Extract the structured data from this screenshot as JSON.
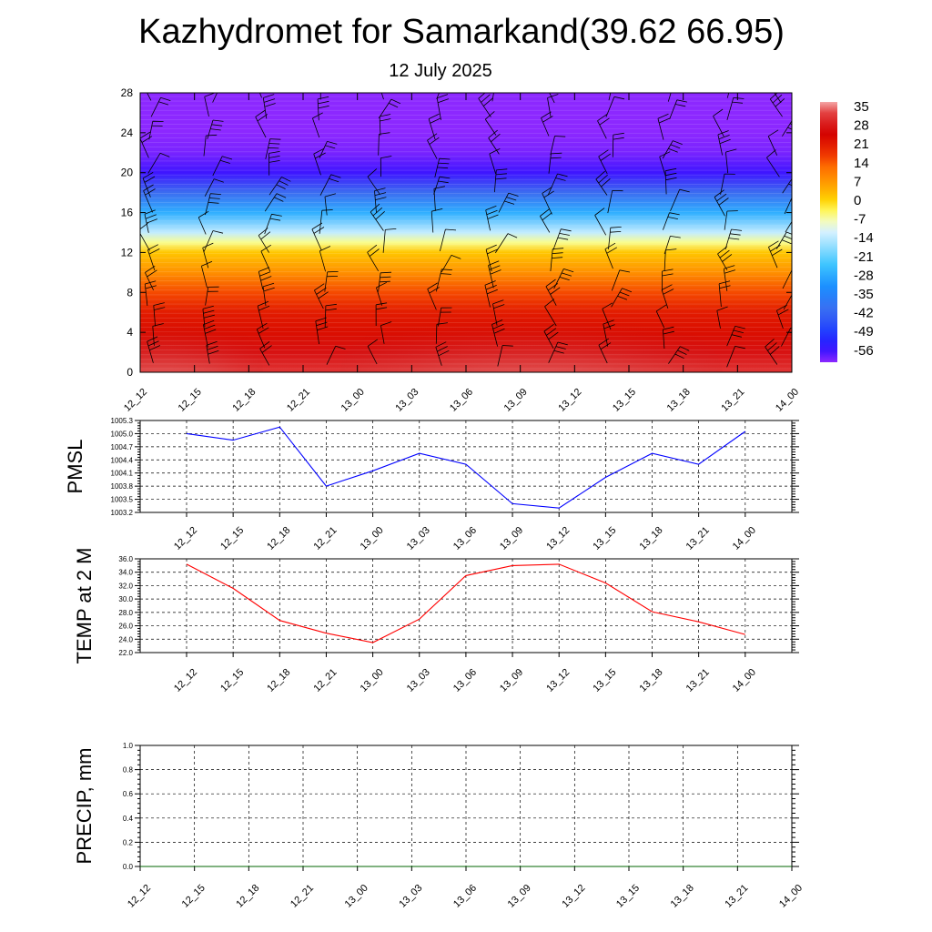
{
  "title": "Kazhydromet for Samarkand(39.62 66.95)",
  "subtitle": "12 July 2025",
  "colors": {
    "pmsl_line": "#0000ff",
    "temp_line": "#ff0000",
    "precip_line": "#006400"
  },
  "chart_data": [
    {
      "id": "temperature-profile",
      "type": "heatmap",
      "x_categories": [
        "12_12",
        "12_15",
        "12_18",
        "12_21",
        "13_00",
        "13_03",
        "13_06",
        "13_09",
        "13_12",
        "13_15",
        "13_18",
        "13_21",
        "14_00"
      ],
      "y_ticks": [
        0,
        4,
        8,
        12,
        16,
        20,
        24,
        28
      ],
      "ylim": [
        0,
        28
      ],
      "colorbar": {
        "labels": [
          "35",
          "28",
          "21",
          "14",
          "7",
          "0",
          "-7",
          "-14",
          "-21",
          "-28",
          "-35",
          "-42",
          "-49",
          "-56"
        ],
        "min": -56,
        "max": 35
      },
      "profile_y": [
        0,
        2,
        4,
        6,
        8,
        10,
        12,
        13,
        14,
        16,
        18,
        20,
        22,
        24,
        26,
        28
      ],
      "profile_t": [
        30,
        26,
        22,
        20,
        15,
        8,
        2,
        -5,
        -12,
        -25,
        -38,
        -52,
        -55,
        -57,
        -58,
        -58
      ],
      "wind_barbs": true
    },
    {
      "id": "pmsl",
      "type": "line",
      "ylabel": "PMSL",
      "categories": [
        "12_12",
        "12_15",
        "12_18",
        "12_21",
        "13_00",
        "13_03",
        "13_06",
        "13_09",
        "13_12",
        "13_15",
        "13_18",
        "13_21",
        "14_00"
      ],
      "values": [
        1005.0,
        1004.85,
        1005.15,
        1003.8,
        1004.15,
        1004.55,
        1004.3,
        1003.4,
        1003.3,
        1004.0,
        1004.55,
        1004.3,
        1005.05
      ],
      "y_ticks": [
        "1003.2",
        "1003.5",
        "1003.8",
        "1004.1",
        "1004.4",
        "1004.7",
        "1005.0",
        "1005.3"
      ],
      "ylim": [
        1003.2,
        1005.3
      ],
      "grid": true
    },
    {
      "id": "temp2m",
      "type": "line",
      "ylabel": "TEMP at 2 M",
      "categories": [
        "12_12",
        "12_15",
        "12_18",
        "12_21",
        "13_00",
        "13_03",
        "13_06",
        "13_09",
        "13_12",
        "13_15",
        "13_18",
        "13_21",
        "14_00"
      ],
      "values": [
        35.2,
        31.6,
        26.8,
        24.9,
        23.5,
        27.0,
        33.5,
        35.0,
        35.2,
        32.4,
        28.1,
        26.6,
        24.7
      ],
      "y_ticks": [
        "22.0",
        "24.0",
        "26.0",
        "28.0",
        "30.0",
        "32.0",
        "34.0",
        "36.0"
      ],
      "ylim": [
        22,
        36
      ],
      "grid": true
    },
    {
      "id": "precip",
      "type": "line",
      "ylabel": "PRECIP, mm",
      "categories": [
        "12_12",
        "12_15",
        "12_18",
        "12_21",
        "13_00",
        "13_03",
        "13_06",
        "13_09",
        "13_12",
        "13_15",
        "13_18",
        "13_21",
        "14_00"
      ],
      "values": [
        0,
        0,
        0,
        0,
        0,
        0,
        0,
        0,
        0,
        0,
        0,
        0,
        0
      ],
      "y_ticks": [
        "0.0",
        "0.2",
        "0.4",
        "0.6",
        "0.8",
        "1.0"
      ],
      "ylim": [
        0,
        1
      ],
      "grid": true
    }
  ]
}
